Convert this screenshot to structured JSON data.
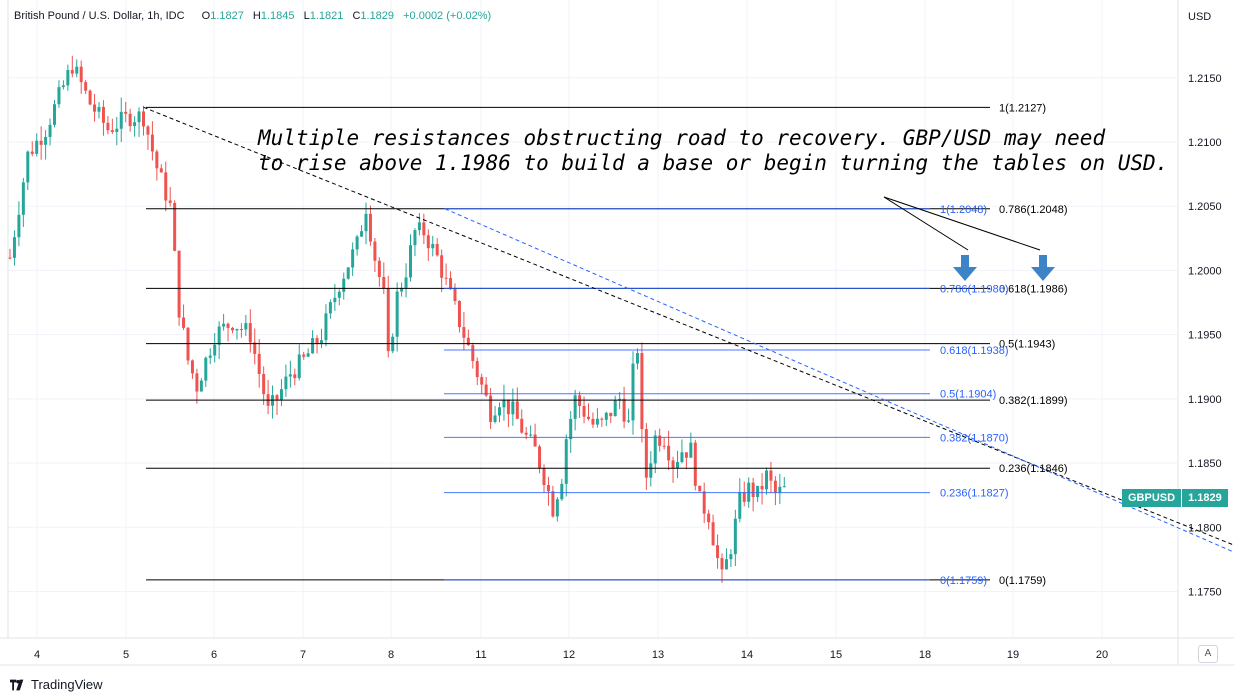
{
  "header": {
    "symbol": "British Pound / U.S. Dollar, 1h, IDC",
    "open_label": "O",
    "open": "1.1827",
    "high_label": "H",
    "high": "1.1845",
    "low_label": "L",
    "low": "1.1821",
    "close_label": "C",
    "close": "1.1829",
    "change": "+0.0002 (+0.02%)"
  },
  "currency": "USD",
  "ticker_badge": {
    "symbol": "GBPUSD",
    "price": "1.1829"
  },
  "auto_button": "A",
  "footer": {
    "brand": "TradingView"
  },
  "annotation": {
    "line1": "Multiple resistances obstructing road to recovery. GBP/USD may need",
    "line2": "to rise above 1.1986 to build a base or begin turning the tables on USD."
  },
  "colors": {
    "up": "#26a69a",
    "down": "#ef5350",
    "fib_black": "#000000",
    "fib_blue": "#2962ff",
    "arrow": "#3d84c6"
  },
  "chart_data": {
    "type": "candlestick",
    "ylim": [
      1.172,
      1.2195
    ],
    "y_ticks": [
      "1.1750",
      "1.1800",
      "1.1850",
      "1.1900",
      "1.1950",
      "1.2000",
      "1.2050",
      "1.2100",
      "1.2150"
    ],
    "x_ticks": [
      "4",
      "5",
      "6",
      "7",
      "8",
      "11",
      "12",
      "13",
      "14",
      "15",
      "18",
      "19",
      "20"
    ],
    "price_path": [
      [
        0,
        1.201
      ],
      [
        4,
        1.209
      ],
      [
        8,
        1.211
      ],
      [
        14,
        1.216
      ],
      [
        18,
        1.213
      ],
      [
        22,
        1.211
      ],
      [
        27,
        1.212
      ],
      [
        30,
        1.212
      ],
      [
        33,
        1.208
      ],
      [
        36,
        1.205
      ],
      [
        38,
        1.197
      ],
      [
        40,
        1.193
      ],
      [
        42,
        1.191
      ],
      [
        44,
        1.193
      ],
      [
        46,
        1.195
      ],
      [
        50,
        1.196
      ],
      [
        54,
        1.195
      ],
      [
        58,
        1.189
      ],
      [
        60,
        1.19
      ],
      [
        63,
        1.192
      ],
      [
        66,
        1.193
      ],
      [
        70,
        1.195
      ],
      [
        74,
        1.199
      ],
      [
        78,
        1.202
      ],
      [
        80,
        1.205
      ],
      [
        82,
        1.201
      ],
      [
        84,
        1.198
      ],
      [
        85,
        1.193
      ],
      [
        87,
        1.198
      ],
      [
        89,
        1.2
      ],
      [
        91,
        1.203
      ],
      [
        93,
        1.203
      ],
      [
        96,
        1.201
      ],
      [
        99,
        1.198
      ],
      [
        102,
        1.195
      ],
      [
        104,
        1.193
      ],
      [
        106,
        1.191
      ],
      [
        108,
        1.189
      ],
      [
        110,
        1.19
      ],
      [
        113,
        1.189
      ],
      [
        116,
        1.187
      ],
      [
        118,
        1.186
      ],
      [
        120,
        1.184
      ],
      [
        122,
        1.1815
      ],
      [
        124,
        1.184
      ],
      [
        125,
        1.187
      ],
      [
        127,
        1.19
      ],
      [
        129,
        1.189
      ],
      [
        131,
        1.188
      ],
      [
        133,
        1.188
      ],
      [
        135,
        1.189
      ],
      [
        137,
        1.19
      ],
      [
        139,
        1.188
      ],
      [
        140,
        1.192
      ],
      [
        141,
        1.194
      ],
      [
        142,
        1.187
      ],
      [
        143,
        1.184
      ],
      [
        145,
        1.187
      ],
      [
        147,
        1.187
      ],
      [
        149,
        1.185
      ],
      [
        151,
        1.186
      ],
      [
        153,
        1.186
      ],
      [
        155,
        1.182
      ],
      [
        157,
        1.181
      ],
      [
        159,
        1.1775
      ],
      [
        160,
        1.176
      ],
      [
        162,
        1.1785
      ],
      [
        164,
        1.182
      ],
      [
        166,
        1.183
      ],
      [
        168,
        1.1825
      ],
      [
        170,
        1.184
      ],
      [
        172,
        1.1826
      ],
      [
        174,
        1.1829
      ]
    ],
    "fib_sets": [
      {
        "color": "black",
        "levels": [
          {
            "label": "1(1.2127)",
            "value": 1.2127
          },
          {
            "label": "0.786(1.2048)",
            "value": 1.2048
          },
          {
            "label": "0.618(1.1986)",
            "value": 1.1986
          },
          {
            "label": "0.5(1.1943)",
            "value": 1.1943
          },
          {
            "label": "0.382(1.1899)",
            "value": 1.1899
          },
          {
            "label": "0.236(1.1846)",
            "value": 1.1846
          },
          {
            "label": "0(1.1759)",
            "value": 1.1759
          }
        ]
      },
      {
        "color": "blue",
        "levels": [
          {
            "label": "1(1.2048)",
            "value": 1.2048
          },
          {
            "label": "0.786(1.1986)",
            "value": 1.1986
          },
          {
            "label": "0.618(1.1938)",
            "value": 1.1938
          },
          {
            "label": "0.5(1.1904)",
            "value": 1.1904
          },
          {
            "label": "0.382(1.1870)",
            "value": 1.187
          },
          {
            "label": "0.236(1.1827)",
            "value": 1.1827
          },
          {
            "label": "0(1.1759)",
            "value": 1.1759
          }
        ]
      }
    ],
    "trendlines": [
      {
        "style": "black-dashed",
        "from": [
          5.2,
          1.2127
        ],
        "to": [
          18.6,
          1.1755
        ]
      },
      {
        "style": "blue-dashed",
        "from": [
          8.6,
          1.2048
        ],
        "to": [
          18.2,
          1.1759
        ]
      }
    ],
    "arrows": 2
  }
}
